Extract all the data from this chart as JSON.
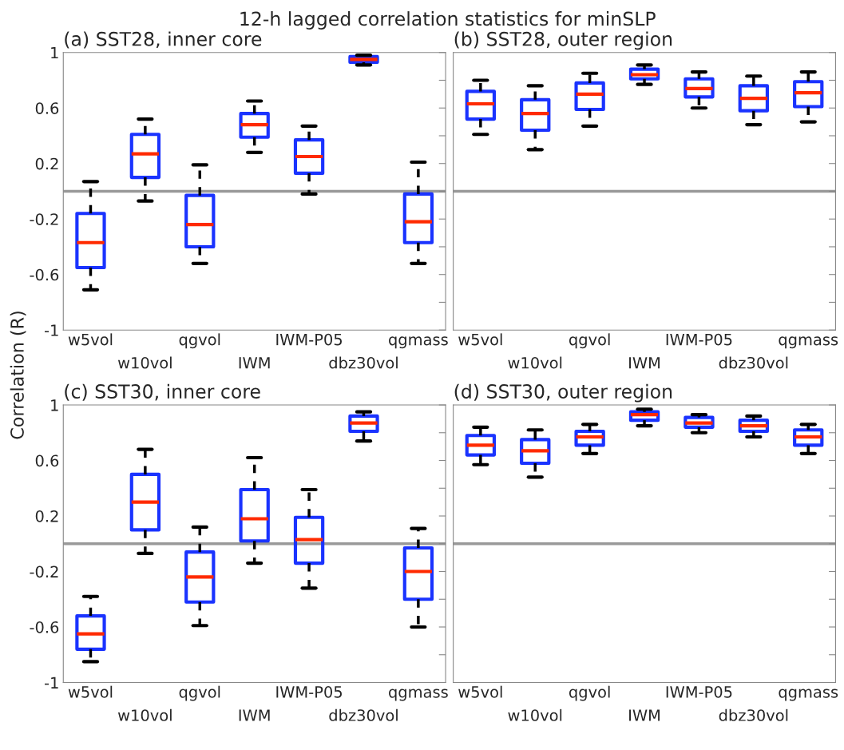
{
  "chart_data": [
    {
      "type": "box",
      "title": "(a) SST28, inner core",
      "ylabel": "Correlation (R)",
      "annotations": [
        "12-h lagged correlation statistics for minSLP"
      ],
      "categories": [
        "w5vol",
        "w10vol",
        "qgvol",
        "IWM",
        "IWM-P05",
        "dbz30vol",
        "qgmass"
      ],
      "ylim": [
        -1,
        1
      ],
      "yticks": [
        -1,
        {
          "value": -0.8,
          "label": null
        },
        -0.6,
        {
          "value": -0.4,
          "label": null
        },
        -0.2,
        {
          "value": 0,
          "label": null
        },
        0.2,
        {
          "value": 0.4,
          "label": null
        },
        0.6,
        {
          "value": 0.8,
          "label": null
        },
        1
      ],
      "ref_lines": [
        {
          "axis": "y",
          "value": 0,
          "color": "#999999"
        }
      ],
      "grid": false,
      "series": [
        {
          "color": "#1a33ff",
          "boxes": [
            {
              "low": -0.71,
              "q1": -0.55,
              "median": -0.37,
              "q3": -0.16,
              "high": 0.07
            },
            {
              "low": -0.07,
              "q1": 0.1,
              "median": 0.27,
              "q3": 0.41,
              "high": 0.52
            },
            {
              "low": -0.52,
              "q1": -0.4,
              "median": -0.24,
              "q3": -0.03,
              "high": 0.19
            },
            {
              "low": 0.28,
              "q1": 0.39,
              "median": 0.48,
              "q3": 0.56,
              "high": 0.65
            },
            {
              "low": -0.02,
              "q1": 0.13,
              "median": 0.25,
              "q3": 0.37,
              "high": 0.47
            },
            {
              "low": 0.91,
              "q1": 0.93,
              "median": 0.95,
              "q3": 0.97,
              "high": 0.98
            },
            {
              "low": -0.52,
              "q1": -0.37,
              "median": -0.22,
              "q3": -0.02,
              "high": 0.21
            }
          ]
        }
      ]
    },
    {
      "type": "box",
      "title": "(b) SST28, outer region",
      "tick_labels": "x",
      "categories": [
        "w5vol",
        "w10vol",
        "qgvol",
        "IWM",
        "IWM-P05",
        "dbz30vol",
        "qgmass"
      ],
      "ylim": [
        -1,
        1
      ],
      "yticks": [
        -1,
        {
          "value": -0.8,
          "label": null
        },
        -0.6,
        {
          "value": -0.4,
          "label": null
        },
        -0.2,
        {
          "value": 0,
          "label": null
        },
        0.2,
        {
          "value": 0.4,
          "label": null
        },
        0.6,
        {
          "value": 0.8,
          "label": null
        },
        1
      ],
      "ref_lines": [
        {
          "axis": "y",
          "value": 0,
          "color": "#999999"
        }
      ],
      "grid": false,
      "series": [
        {
          "color": "#1a33ff",
          "boxes": [
            {
              "low": 0.41,
              "q1": 0.52,
              "median": 0.63,
              "q3": 0.72,
              "high": 0.8
            },
            {
              "low": 0.3,
              "q1": 0.44,
              "median": 0.56,
              "q3": 0.66,
              "high": 0.76
            },
            {
              "low": 0.47,
              "q1": 0.59,
              "median": 0.7,
              "q3": 0.78,
              "high": 0.85
            },
            {
              "low": 0.77,
              "q1": 0.81,
              "median": 0.84,
              "q3": 0.88,
              "high": 0.91
            },
            {
              "low": 0.6,
              "q1": 0.68,
              "median": 0.74,
              "q3": 0.81,
              "high": 0.86
            },
            {
              "low": 0.48,
              "q1": 0.58,
              "median": 0.67,
              "q3": 0.76,
              "high": 0.83
            },
            {
              "low": 0.5,
              "q1": 0.61,
              "median": 0.71,
              "q3": 0.79,
              "high": 0.86
            }
          ]
        }
      ]
    },
    {
      "type": "box",
      "title": "(c) SST30, inner core",
      "categories": [
        "w5vol",
        "w10vol",
        "qgvol",
        "IWM",
        "IWM-P05",
        "dbz30vol",
        "qgmass"
      ],
      "ylim": [
        -1,
        1
      ],
      "yticks": [
        -1,
        {
          "value": -0.8,
          "label": null
        },
        -0.6,
        {
          "value": -0.4,
          "label": null
        },
        -0.2,
        {
          "value": 0,
          "label": null
        },
        0.2,
        {
          "value": 0.4,
          "label": null
        },
        0.6,
        {
          "value": 0.8,
          "label": null
        },
        1
      ],
      "ref_lines": [
        {
          "axis": "y",
          "value": 0,
          "color": "#999999"
        }
      ],
      "grid": false,
      "series": [
        {
          "color": "#1a33ff",
          "boxes": [
            {
              "low": -0.85,
              "q1": -0.76,
              "median": -0.65,
              "q3": -0.52,
              "high": -0.38
            },
            {
              "low": -0.07,
              "q1": 0.1,
              "median": 0.3,
              "q3": 0.5,
              "high": 0.68
            },
            {
              "low": -0.59,
              "q1": -0.42,
              "median": -0.24,
              "q3": -0.06,
              "high": 0.12
            },
            {
              "low": -0.14,
              "q1": 0.02,
              "median": 0.18,
              "q3": 0.39,
              "high": 0.62
            },
            {
              "low": -0.32,
              "q1": -0.14,
              "median": 0.03,
              "q3": 0.19,
              "high": 0.39
            },
            {
              "low": 0.74,
              "q1": 0.81,
              "median": 0.87,
              "q3": 0.92,
              "high": 0.95
            },
            {
              "low": -0.6,
              "q1": -0.4,
              "median": -0.2,
              "q3": -0.03,
              "high": 0.11
            }
          ]
        }
      ]
    },
    {
      "type": "box",
      "title": "(d) SST30, outer region",
      "tick_labels": "x",
      "categories": [
        "w5vol",
        "w10vol",
        "qgvol",
        "IWM",
        "IWM-P05",
        "dbz30vol",
        "qgmass"
      ],
      "ylim": [
        -1,
        1
      ],
      "yticks": [
        -1,
        {
          "value": -0.8,
          "label": null
        },
        -0.6,
        {
          "value": -0.4,
          "label": null
        },
        -0.2,
        {
          "value": 0,
          "label": null
        },
        0.2,
        {
          "value": 0.4,
          "label": null
        },
        0.6,
        {
          "value": 0.8,
          "label": null
        },
        1
      ],
      "ref_lines": [
        {
          "axis": "y",
          "value": 0,
          "color": "#999999"
        }
      ],
      "grid": false,
      "series": [
        {
          "color": "#1a33ff",
          "boxes": [
            {
              "low": 0.57,
              "q1": 0.64,
              "median": 0.71,
              "q3": 0.78,
              "high": 0.84
            },
            {
              "low": 0.48,
              "q1": 0.58,
              "median": 0.67,
              "q3": 0.75,
              "high": 0.82
            },
            {
              "low": 0.65,
              "q1": 0.71,
              "median": 0.77,
              "q3": 0.81,
              "high": 0.86
            },
            {
              "low": 0.85,
              "q1": 0.89,
              "median": 0.93,
              "q3": 0.95,
              "high": 0.97
            },
            {
              "low": 0.8,
              "q1": 0.84,
              "median": 0.87,
              "q3": 0.91,
              "high": 0.93
            },
            {
              "low": 0.77,
              "q1": 0.81,
              "median": 0.85,
              "q3": 0.89,
              "high": 0.92
            },
            {
              "low": 0.65,
              "q1": 0.71,
              "median": 0.77,
              "q3": 0.82,
              "high": 0.86
            }
          ]
        }
      ]
    }
  ]
}
